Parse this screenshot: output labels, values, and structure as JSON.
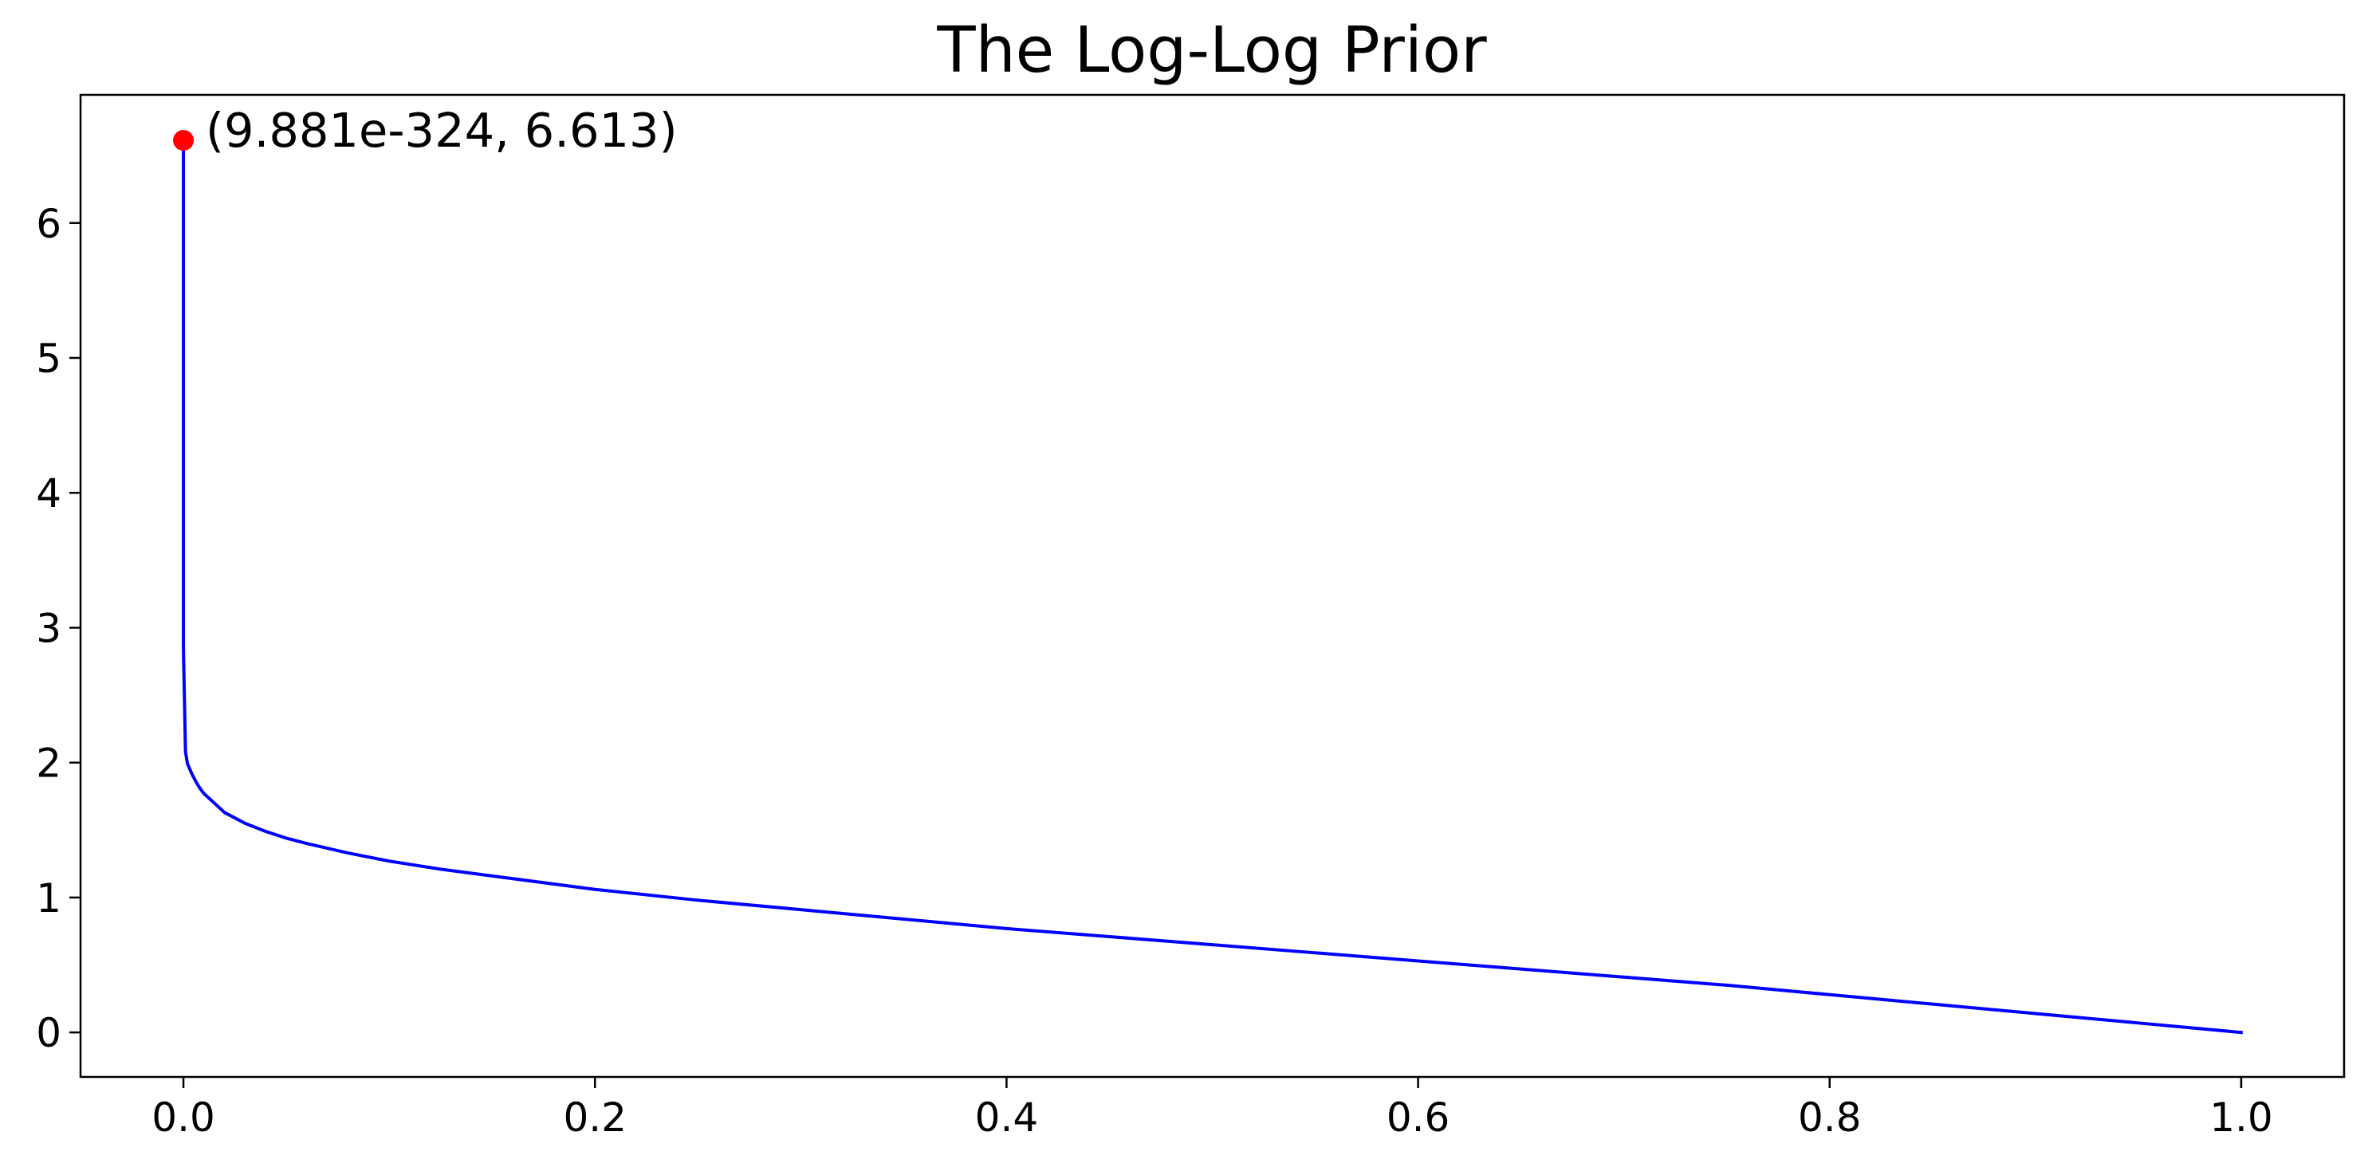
{
  "chart_data": {
    "type": "line",
    "title": "The Log-Log Prior",
    "xlabel": "",
    "ylabel": "",
    "xlim": [
      -0.05,
      1.05
    ],
    "ylim": [
      -0.33,
      6.95
    ],
    "x_ticks": [
      0.0,
      0.2,
      0.4,
      0.6,
      0.8,
      1.0
    ],
    "x_tick_labels": [
      "0.0",
      "0.2",
      "0.4",
      "0.6",
      "0.8",
      "1.0"
    ],
    "y_ticks": [
      0,
      1,
      2,
      3,
      4,
      5,
      6
    ],
    "y_tick_labels": [
      "0",
      "1",
      "2",
      "3",
      "4",
      "5",
      "6"
    ],
    "grid": false,
    "legend": false,
    "series": [
      {
        "color": "#0000ff",
        "x": [
          0.0,
          0.0,
          0.0,
          0.001,
          0.002,
          0.004,
          0.006,
          0.008,
          0.01,
          0.015,
          0.02,
          0.03,
          0.04,
          0.05,
          0.06,
          0.08,
          0.1,
          0.125,
          0.15,
          0.2,
          0.25,
          0.3,
          0.35,
          0.4,
          0.45,
          0.5,
          0.55,
          0.6,
          0.65,
          0.7,
          0.75,
          0.8,
          0.85,
          0.9,
          0.95,
          1.0
        ],
        "y": [
          6.613,
          3.2,
          2.85,
          2.08,
          1.99,
          1.92,
          1.86,
          1.81,
          1.77,
          1.7,
          1.63,
          1.55,
          1.49,
          1.44,
          1.4,
          1.33,
          1.27,
          1.21,
          1.16,
          1.06,
          0.98,
          0.91,
          0.84,
          0.77,
          0.71,
          0.65,
          0.59,
          0.53,
          0.47,
          0.41,
          0.35,
          0.28,
          0.21,
          0.14,
          0.07,
          0.0
        ]
      }
    ],
    "highlight_point": {
      "x": 1e-323,
      "y": 6.613,
      "color": "#ff0000",
      "label": "(9.881e-324, 6.613)"
    }
  }
}
